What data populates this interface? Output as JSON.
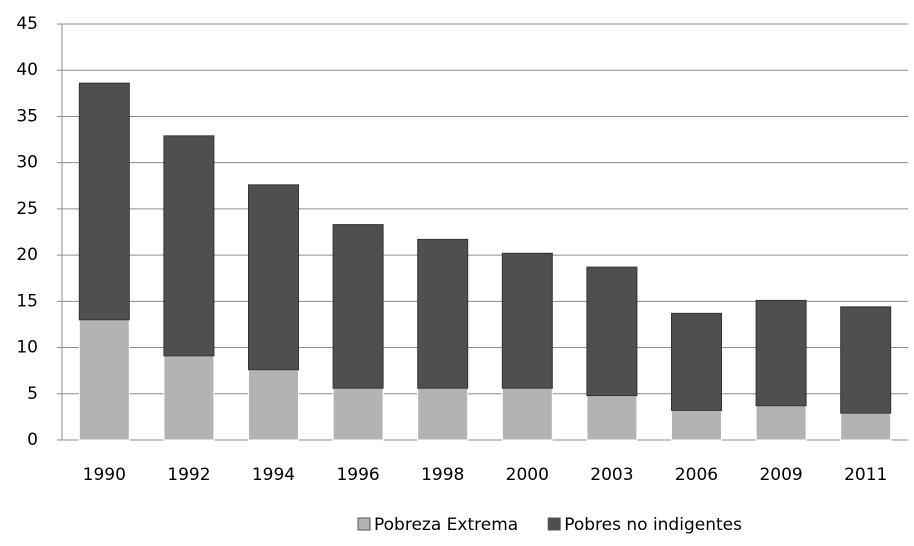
{
  "chart_data": {
    "type": "stacked_bar",
    "categories": [
      "1990",
      "1992",
      "1994",
      "1996",
      "1998",
      "2000",
      "2003",
      "2006",
      "2009",
      "2011"
    ],
    "series": [
      {
        "name": "Pobreza Extrema",
        "color": "#b3b3b3",
        "values": [
          13.0,
          9.1,
          7.6,
          5.6,
          5.6,
          5.6,
          4.8,
          3.2,
          3.7,
          2.9
        ]
      },
      {
        "name": "Pobres no indigentes",
        "color": "#4f4f4f",
        "values": [
          25.6,
          23.8,
          20.0,
          17.7,
          16.1,
          14.6,
          13.9,
          10.5,
          11.4,
          11.5
        ]
      }
    ],
    "ylim": [
      0,
      45
    ],
    "yticks": [
      0,
      5,
      10,
      15,
      20,
      25,
      30,
      35,
      40,
      45
    ],
    "grid": true,
    "legend": "bottom"
  }
}
